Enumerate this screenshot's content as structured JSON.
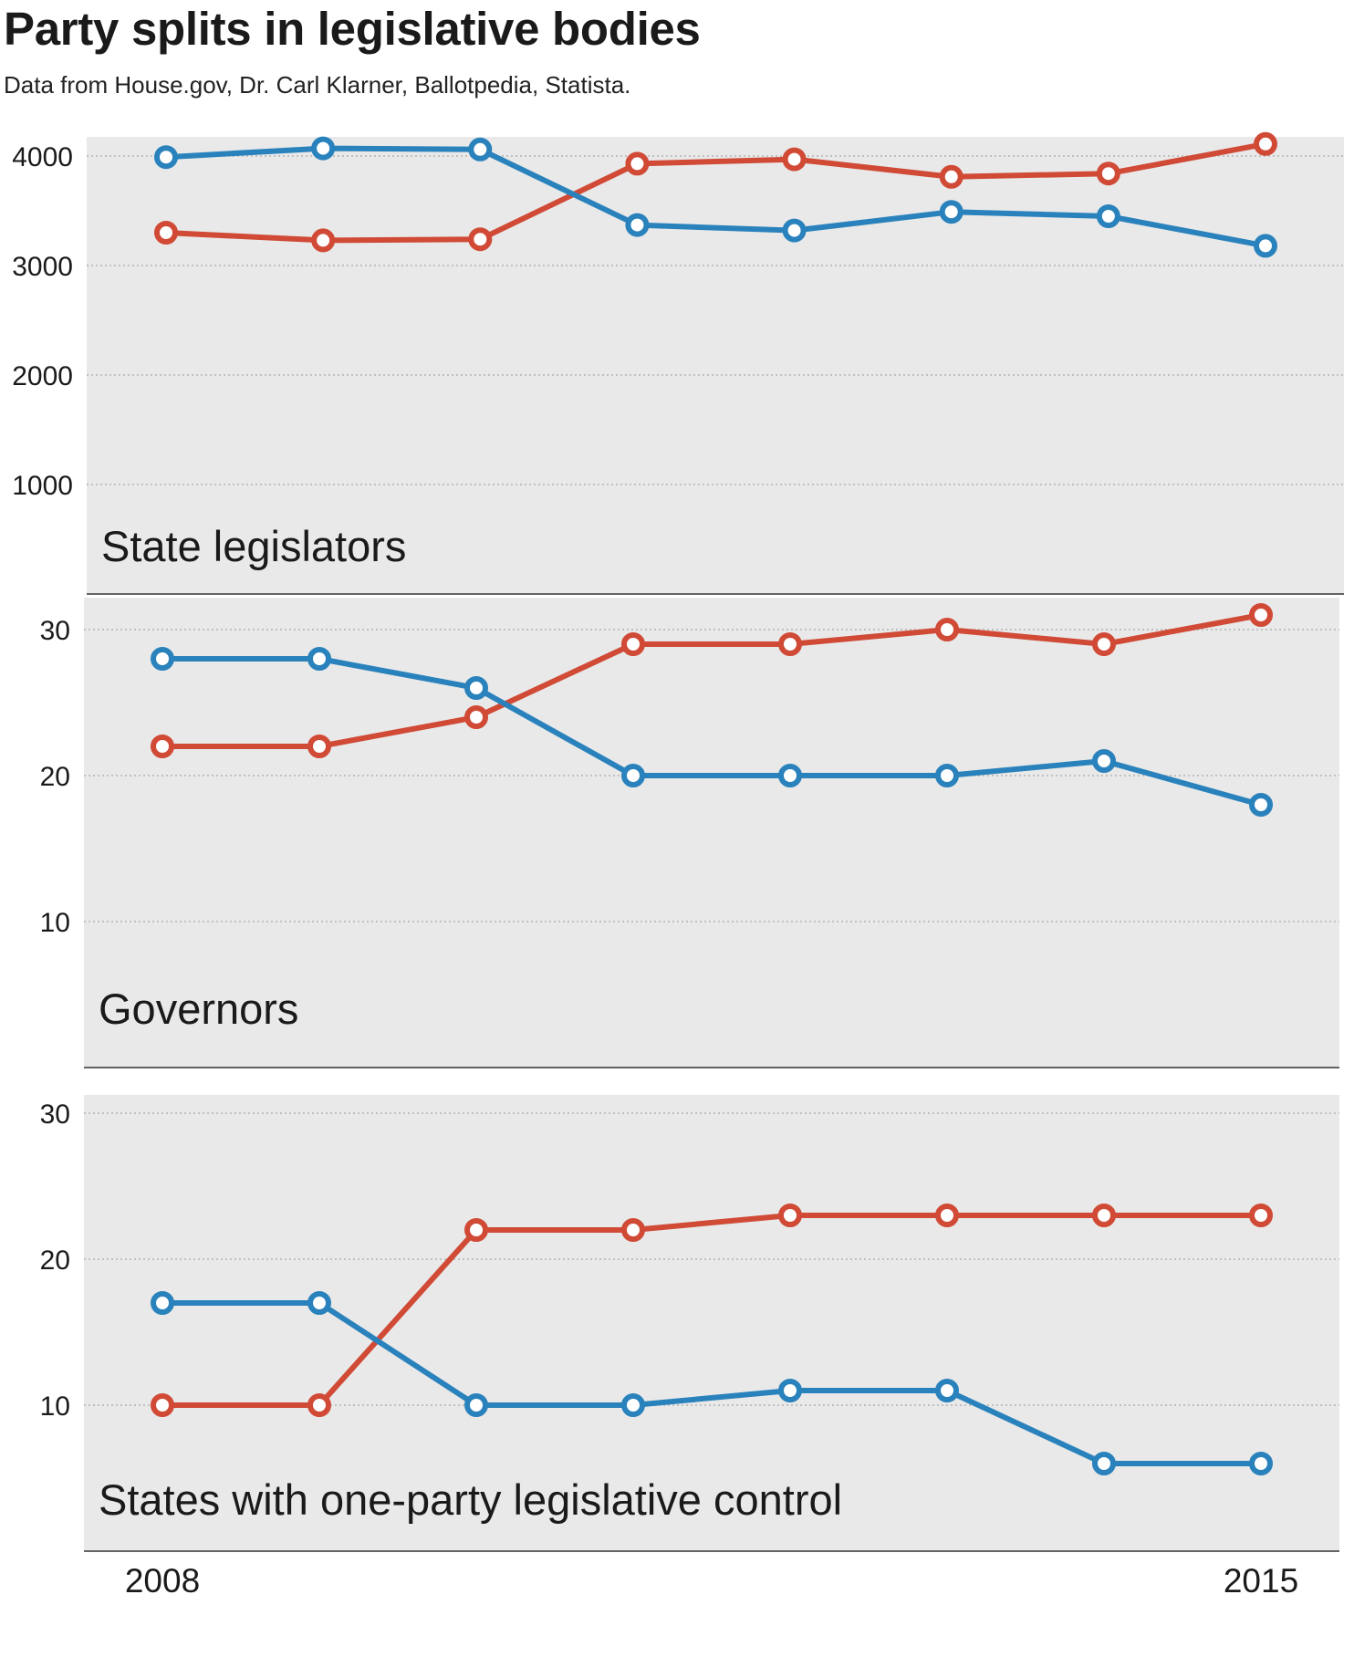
{
  "header": {
    "title": "Party splits in legislative bodies",
    "subtitle": "Data from House.gov, Dr. Carl Klarner, Ballotpedia, Statista."
  },
  "colors": {
    "republican": "#d04a36",
    "democrat": "#2a82bc",
    "panel_background": "#e9e9e9",
    "gridline": "#b3b3b3",
    "baseline": "#333333"
  },
  "chart_data": [
    {
      "type": "line",
      "title": "State legislators",
      "x": [
        2008,
        2009,
        2010,
        2011,
        2012,
        2013,
        2014,
        2015
      ],
      "x_tick_labels": [
        "2008",
        "2015"
      ],
      "ylim": [
        0,
        4100
      ],
      "y_ticks": [
        1000,
        2000,
        3000,
        4000
      ],
      "y_tick_labels": [
        "1000",
        "2000",
        "3000",
        "4000"
      ],
      "grid": true,
      "series": [
        {
          "color": "#d04a36",
          "values": [
            3300,
            3230,
            3240,
            3930,
            3970,
            3810,
            3840,
            4110
          ]
        },
        {
          "color": "#2a82bc",
          "values": [
            3990,
            4070,
            4060,
            3370,
            3320,
            3490,
            3450,
            3180
          ]
        }
      ]
    },
    {
      "type": "line",
      "title": "Governors",
      "x": [
        2008,
        2009,
        2010,
        2011,
        2012,
        2013,
        2014,
        2015
      ],
      "x_tick_labels": [
        "2008",
        "2015"
      ],
      "ylim": [
        0,
        31
      ],
      "y_ticks": [
        10,
        20,
        30
      ],
      "y_tick_labels": [
        "10",
        "20",
        "30"
      ],
      "grid": true,
      "series": [
        {
          "color": "#d04a36",
          "values": [
            22,
            22,
            24,
            29,
            29,
            30,
            29,
            31
          ]
        },
        {
          "color": "#2a82bc",
          "values": [
            28,
            28,
            26,
            20,
            20,
            20,
            21,
            18
          ]
        }
      ]
    },
    {
      "type": "line",
      "title": "States with one-party legislative control",
      "x": [
        2008,
        2009,
        2010,
        2011,
        2012,
        2013,
        2014,
        2015
      ],
      "x_tick_labels": [
        "2008",
        "2015"
      ],
      "ylim": [
        0,
        30
      ],
      "y_ticks": [
        10,
        20,
        30
      ],
      "y_tick_labels": [
        "10",
        "20",
        "30"
      ],
      "grid": true,
      "series": [
        {
          "color": "#d04a36",
          "values": [
            10,
            10,
            22,
            22,
            23,
            23,
            23,
            23
          ]
        },
        {
          "color": "#2a82bc",
          "values": [
            17,
            17,
            10,
            10,
            11,
            11,
            6,
            6
          ]
        }
      ]
    }
  ]
}
